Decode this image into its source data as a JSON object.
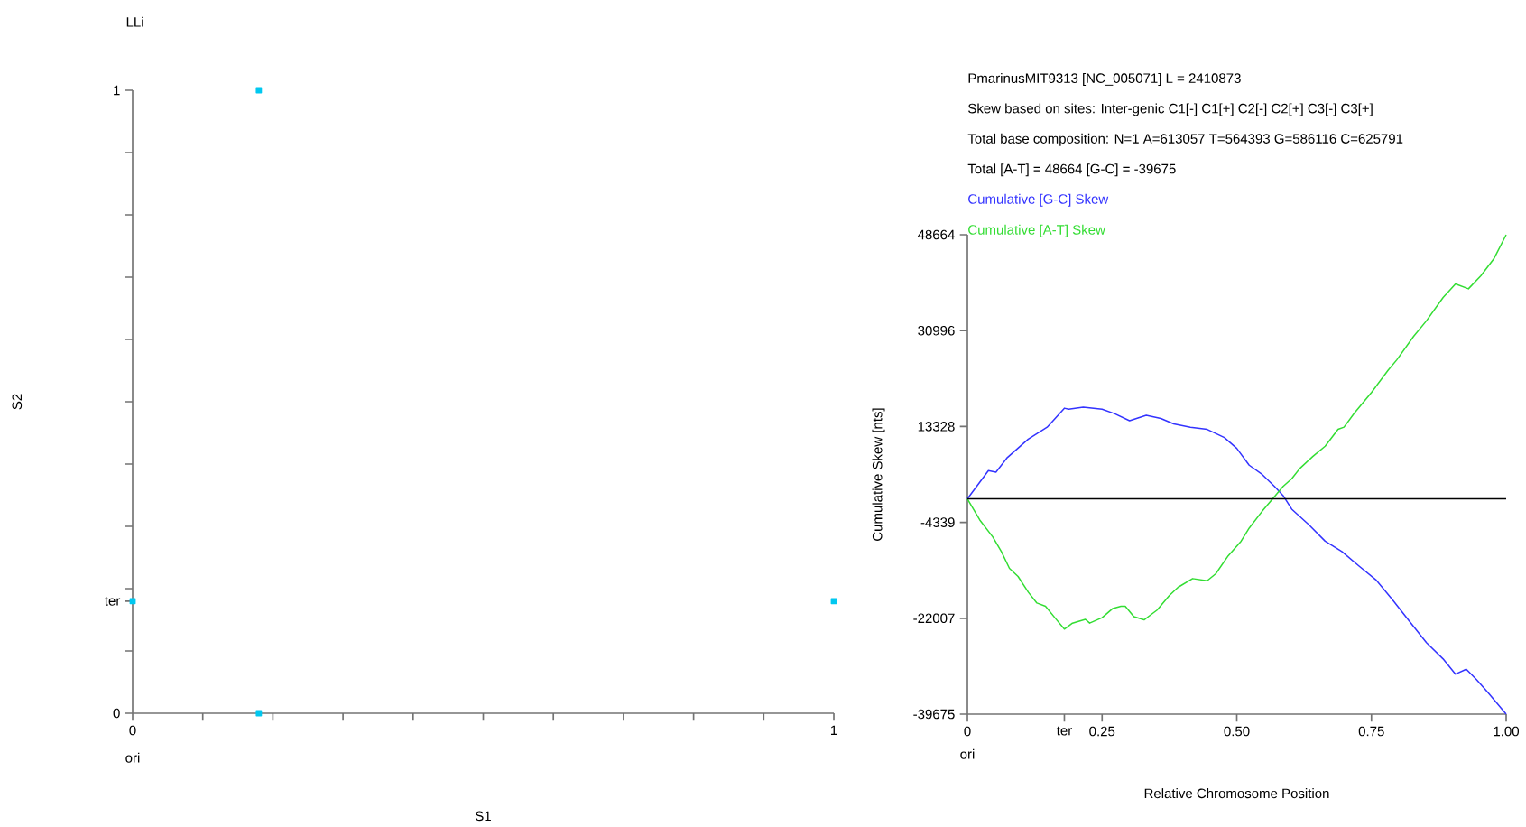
{
  "chart_data": [
    {
      "type": "scatter",
      "title": "LLi",
      "xlabel": "S1",
      "ylabel": "S2",
      "color": "#00c8f0",
      "marker": "square",
      "x": [
        0.18,
        0.18,
        0,
        1
      ],
      "values": [
        1,
        0,
        0.18,
        0.18
      ],
      "xlim": [
        0,
        1
      ],
      "ylim": [
        0,
        1
      ],
      "xticks": [
        0,
        {
          "value": 0.1,
          "label": null
        },
        {
          "value": 0.2,
          "label": null
        },
        {
          "value": 0.3,
          "label": null
        },
        {
          "value": 0.4,
          "label": null
        },
        {
          "value": 0.5,
          "label": null
        },
        {
          "value": 0.6,
          "label": null
        },
        {
          "value": 0.7,
          "label": null
        },
        {
          "value": 0.8,
          "label": null
        },
        {
          "value": 0.9,
          "label": null
        },
        1
      ],
      "yticks": [
        0,
        {
          "value": 0.1,
          "label": null
        },
        {
          "value": 0.18,
          "label": "ter"
        },
        {
          "value": 0.2,
          "label": null
        },
        {
          "value": 0.3,
          "label": null
        },
        {
          "value": 0.4,
          "label": null
        },
        {
          "value": 0.5,
          "label": null
        },
        {
          "value": 0.6,
          "label": null
        },
        {
          "value": 0.7,
          "label": null
        },
        {
          "value": 0.8,
          "label": null
        },
        {
          "value": 0.9,
          "label": null
        },
        1
      ],
      "annotations": [
        "ori"
      ]
    },
    {
      "type": "line",
      "title": "PmarinusMIT9313 [NC_005071]  L = 2410873",
      "xlabel": "Relative Chromosome Position",
      "ylabel": "Cumulative Skew [nts]",
      "legend": "top left",
      "annotations": [
        "Skew based on sites: Inter-genic  C1[-]  C1[+]  C2[-]  C2[+]  C3[-]  C3[+]",
        "Total base composition: N=1 A=613057 T=564393    G=586116 C=625791",
        "Total [A-T] = 48664   [G-C] = -39675",
        "ori"
      ],
      "xlim": [
        0,
        1
      ],
      "ylim": [
        -39675,
        48664
      ],
      "xticks": [
        0,
        {
          "value": 0.18,
          "label": "ter"
        },
        {
          "value": 0.25,
          "label": "0.25"
        },
        {
          "value": 0.5,
          "label": "0.50"
        },
        {
          "value": 0.75,
          "label": "0.75"
        },
        {
          "value": 1,
          "label": "1.00"
        }
      ],
      "yticks": [
        -39675,
        -22007,
        -4339,
        13328,
        30996,
        48664
      ],
      "ref_lines": [
        {
          "axis": "y",
          "value": 0,
          "color": "#000000"
        }
      ],
      "series": [
        {
          "name": "Cumulative [G-C] Skew",
          "color": "#3333ff",
          "x": [
            0,
            0.039,
            0.053,
            0.074,
            0.113,
            0.148,
            0.18,
            0.188,
            0.215,
            0.25,
            0.273,
            0.301,
            0.332,
            0.359,
            0.383,
            0.414,
            0.445,
            0.477,
            0.5,
            0.523,
            0.547,
            0.57,
            0.586,
            0.602,
            0.633,
            0.664,
            0.695,
            0.727,
            0.758,
            0.789,
            0.82,
            0.852,
            0.883,
            0.906,
            0.926,
            0.945,
            0.969,
            1
          ],
          "values": [
            0,
            5200,
            4900,
            7600,
            11000,
            13200,
            16700,
            16500,
            16900,
            16500,
            15700,
            14400,
            15400,
            14800,
            13800,
            13200,
            12800,
            11300,
            9300,
            6200,
            4500,
            2300,
            600,
            -1900,
            -4700,
            -7800,
            -9700,
            -12400,
            -14900,
            -18600,
            -22500,
            -26500,
            -29500,
            -32300,
            -31400,
            -33300,
            -36000,
            -39675
          ]
        },
        {
          "name": "Cumulative [A-T] Skew",
          "color": "#33dd33",
          "x": [
            0,
            0.023,
            0.047,
            0.063,
            0.078,
            0.094,
            0.113,
            0.129,
            0.145,
            0.164,
            0.18,
            0.195,
            0.219,
            0.227,
            0.25,
            0.27,
            0.285,
            0.293,
            0.309,
            0.328,
            0.352,
            0.375,
            0.391,
            0.418,
            0.445,
            0.461,
            0.484,
            0.508,
            0.523,
            0.547,
            0.563,
            0.586,
            0.602,
            0.617,
            0.641,
            0.664,
            0.688,
            0.699,
            0.719,
            0.75,
            0.781,
            0.797,
            0.828,
            0.852,
            0.883,
            0.906,
            0.93,
            0.953,
            0.977,
            1
          ],
          "values": [
            0,
            -3900,
            -7000,
            -9700,
            -12800,
            -14300,
            -17200,
            -19200,
            -19800,
            -22100,
            -24000,
            -22900,
            -22200,
            -22900,
            -21900,
            -20200,
            -19800,
            -19800,
            -21700,
            -22300,
            -20500,
            -17800,
            -16300,
            -14700,
            -15100,
            -13800,
            -10500,
            -7800,
            -5400,
            -2300,
            -400,
            2300,
            3700,
            5600,
            7800,
            9700,
            12800,
            13200,
            15900,
            19600,
            23700,
            25600,
            29900,
            32800,
            37100,
            39600,
            38700,
            41100,
            44200,
            48664
          ]
        }
      ]
    }
  ]
}
